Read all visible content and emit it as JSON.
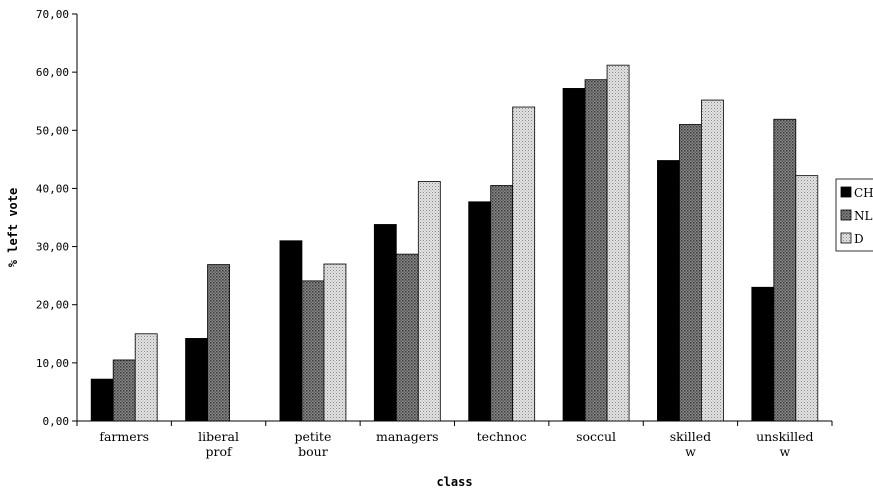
{
  "chart_data": {
    "type": "bar",
    "title": "",
    "xlabel": "class",
    "ylabel": "% left vote",
    "ylim": [
      0,
      70
    ],
    "yticks": [
      0,
      10,
      20,
      30,
      40,
      50,
      60,
      70
    ],
    "ytick_labels": [
      "0,00",
      "10,00",
      "20,00",
      "30,00",
      "40,00",
      "50,00",
      "60,00",
      "70,00"
    ],
    "grid": false,
    "legend_position": "right",
    "categories": [
      [
        "farmers"
      ],
      [
        "liberal",
        "prof"
      ],
      [
        "petite",
        "bour"
      ],
      [
        "managers"
      ],
      [
        "technoc"
      ],
      [
        "soccul"
      ],
      [
        "skilled",
        "w"
      ],
      [
        "unskilled",
        "w"
      ]
    ],
    "series": [
      {
        "name": "CH",
        "color": "#000000",
        "pattern": "solid",
        "values": [
          7.2,
          14.2,
          31.0,
          33.8,
          37.7,
          57.2,
          44.8,
          23.0
        ]
      },
      {
        "name": "NL",
        "color": "#707070",
        "pattern": "dense-dots",
        "values": [
          10.5,
          26.9,
          24.1,
          28.7,
          40.5,
          58.7,
          51.0,
          51.9
        ]
      },
      {
        "name": "D",
        "color": "#cfcfcf",
        "pattern": "light-dots",
        "values": [
          15.0,
          null,
          27.0,
          41.2,
          54.0,
          61.2,
          55.2,
          42.2
        ]
      }
    ]
  }
}
